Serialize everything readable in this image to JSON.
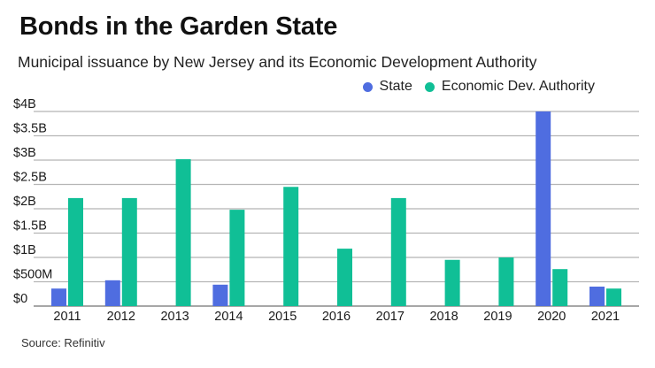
{
  "header": {
    "title": "Bonds in the Garden State",
    "subtitle": "Municipal issuance by New Jersey and its Economic Development Authority"
  },
  "footer": {
    "source": "Source: Refinitiv"
  },
  "chart_data": {
    "type": "bar",
    "title": "Bonds in the Garden State",
    "subtitle": "Municipal issuance by New Jersey and its Economic Development Authority",
    "xlabel": "",
    "ylabel": "",
    "categories": [
      "2011",
      "2012",
      "2013",
      "2014",
      "2015",
      "2016",
      "2017",
      "2018",
      "2019",
      "2020",
      "2021"
    ],
    "series": [
      {
        "name": "State",
        "color": "#4f6de0",
        "values": [
          0.36,
          0.53,
          0,
          0.44,
          0,
          0,
          0,
          0,
          0,
          4.0,
          0.4
        ]
      },
      {
        "name": "Economic Dev. Authority",
        "color": "#10bf96",
        "values": [
          2.22,
          2.22,
          3.02,
          1.98,
          2.45,
          1.18,
          2.22,
          0.95,
          1.0,
          0.76,
          0.36
        ]
      }
    ],
    "units": "billions USD",
    "ylim": [
      0,
      4
    ],
    "yticks": [
      0,
      0.5,
      1,
      1.5,
      2,
      2.5,
      3,
      3.5,
      4
    ],
    "ytick_labels": [
      "$0",
      "$500M",
      "$1B",
      "$1.5B",
      "$2B",
      "$2.5B",
      "$3B",
      "$3.5B",
      "$4B"
    ],
    "grid": true,
    "legend": {
      "placement": "top-right",
      "entries": [
        "State",
        "Economic Dev. Authority"
      ]
    },
    "source": "Source: Refinitiv"
  }
}
